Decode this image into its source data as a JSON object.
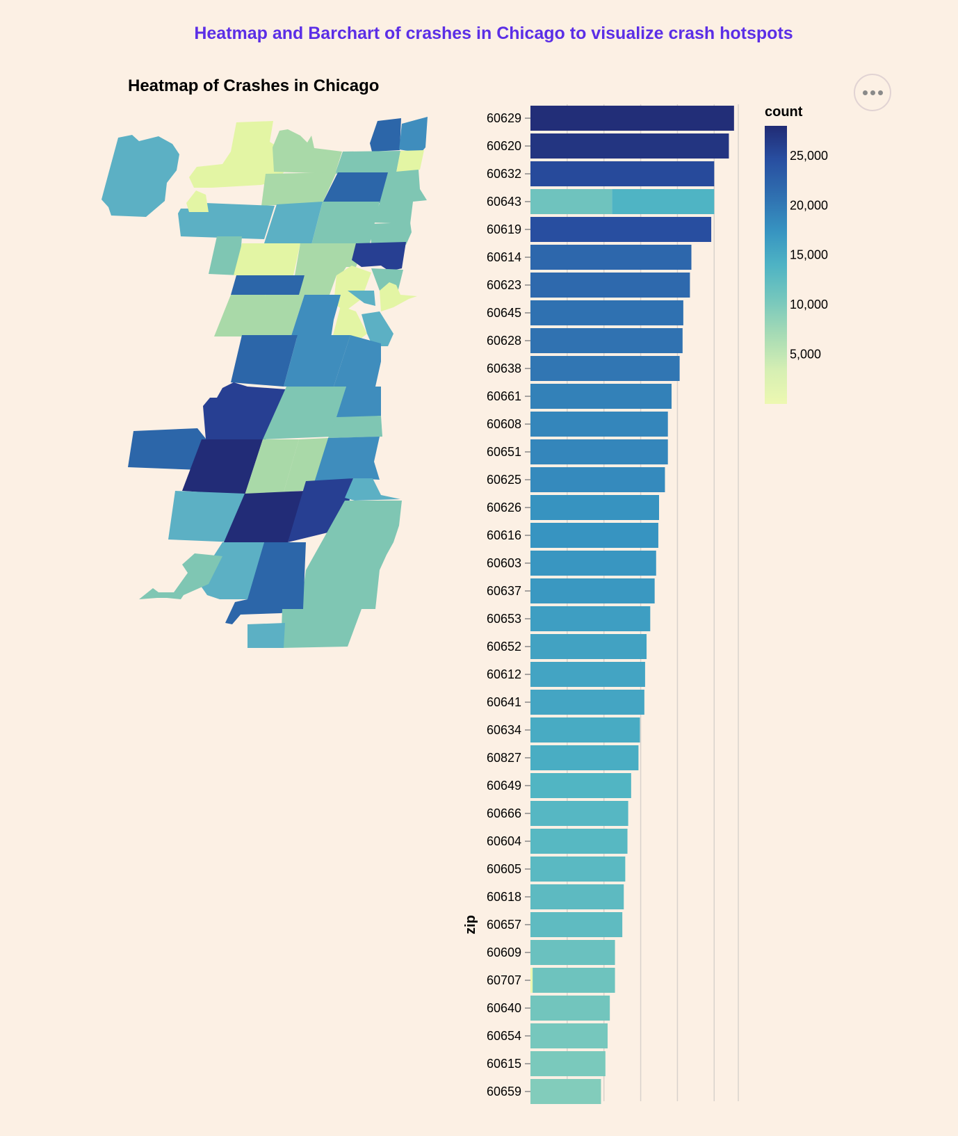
{
  "page": {
    "title": "Heatmap and Barchart of crashes in Chicago to visualize crash hotspots"
  },
  "actions_menu": {
    "icon": "ellipsis-icon"
  },
  "chart_data": [
    {
      "type": "heatmap",
      "title": "Heatmap of Crashes in Chicago",
      "note": "choropleth map of Chicago zip code areas colored by crash count",
      "colors": {
        "very_low": "#e3f5a4",
        "low": "#c7e6a3",
        "light": "#a9d9a8",
        "mid_low": "#7fc6b3",
        "mid": "#5cb0c4",
        "mid_high": "#3f8dbd",
        "high": "#2c66a9",
        "very_high": "#273f92",
        "max": "#222c77"
      }
    },
    {
      "type": "bar",
      "orientation": "horizontal",
      "ylabel": "zip",
      "xlim": [
        0,
        28000
      ],
      "legend": {
        "title": "count",
        "position": "right",
        "ticks": [
          "25,000",
          "20,000",
          "15,000",
          "10,000",
          "5,000"
        ],
        "tick_values": [
          25000,
          20000,
          15000,
          10000,
          5000
        ],
        "range": [
          0,
          28000
        ],
        "scale": "YlGnBu sequential"
      },
      "categories": [
        "60629",
        "60620",
        "60632",
        "60643",
        "60619",
        "60614",
        "60623",
        "60645",
        "60628",
        "60638",
        "60661",
        "60608",
        "60651",
        "60625",
        "60626",
        "60616",
        "60603",
        "60637",
        "60653",
        "60652",
        "60612",
        "60641",
        "60634",
        "60827",
        "60649",
        "60666",
        "60604",
        "60605",
        "60618",
        "60657",
        "60609",
        "60707",
        "60640",
        "60654",
        "60615",
        "60659"
      ],
      "values": [
        27700,
        27000,
        25000,
        25000,
        24600,
        21900,
        21700,
        20800,
        20700,
        20300,
        19200,
        18700,
        18700,
        18300,
        17500,
        17400,
        17100,
        16900,
        16300,
        15800,
        15600,
        15500,
        14900,
        14700,
        13700,
        13300,
        13200,
        12900,
        12700,
        12500,
        11500,
        11500,
        10800,
        10500,
        10200,
        9600
      ],
      "segments": {
        "60643": [
          11100,
          13900
        ],
        "60707": [
          300,
          11200
        ]
      }
    }
  ]
}
